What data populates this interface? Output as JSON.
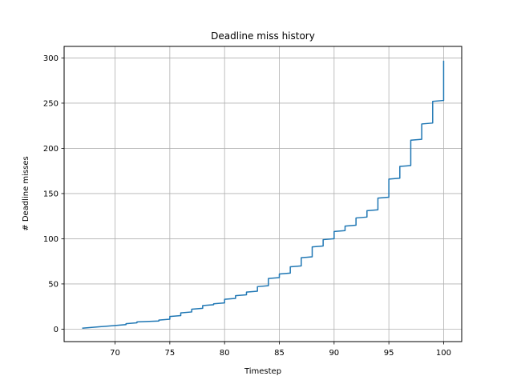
{
  "chart_data": {
    "type": "line",
    "title": "Deadline miss history",
    "xlabel": "Timestep",
    "ylabel": "# Deadline misses",
    "xlim": [
      65.35,
      101.65
    ],
    "ylim": [
      -13.8,
      312.8
    ],
    "xticks": [
      70,
      75,
      80,
      85,
      90,
      95,
      100
    ],
    "yticks": [
      0,
      50,
      100,
      150,
      200,
      250,
      300
    ],
    "grid": true,
    "line_color": "#1f77b4",
    "series": [
      {
        "x": [
          67,
          71,
          71,
          72,
          72,
          74,
          74,
          75,
          75,
          76,
          76,
          77,
          77,
          78,
          78,
          79,
          79,
          80,
          80,
          81,
          81,
          82,
          82,
          83,
          83,
          84,
          84,
          85,
          85,
          86,
          86,
          87,
          87,
          88,
          88,
          89,
          89,
          90,
          90,
          91,
          91,
          92,
          92,
          93,
          93,
          94,
          94,
          95,
          95,
          96,
          96,
          97,
          97,
          98,
          98,
          99,
          99,
          100,
          100
        ],
        "y": [
          1,
          5,
          6,
          7,
          8,
          9,
          10,
          11,
          14,
          15,
          18,
          19,
          22,
          23,
          26,
          27,
          28,
          29,
          33,
          34,
          37,
          38,
          41,
          42,
          47,
          48,
          56,
          57,
          61,
          62,
          69,
          70,
          79,
          80,
          91,
          92,
          99,
          100,
          108,
          109,
          114,
          115,
          123,
          124,
          131,
          132,
          145,
          146,
          166,
          167,
          180,
          181,
          209,
          210,
          227,
          228,
          252,
          253,
          297
        ]
      }
    ]
  }
}
